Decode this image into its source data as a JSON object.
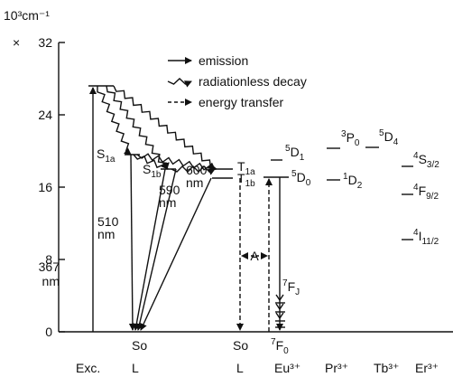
{
  "axis": {
    "unit": "10³cm⁻¹",
    "top_prefix": "×",
    "ylim": [
      0,
      32
    ],
    "yticks": [
      0,
      8,
      16,
      24,
      32
    ]
  },
  "legend": [
    {
      "label": "emission",
      "style": "solid"
    },
    {
      "label": "radiationless decay",
      "style": "wavy"
    },
    {
      "label": "energy transfer",
      "style": "dashed"
    }
  ],
  "columns": [
    "Exc.",
    "L",
    "L",
    "Eu³⁺",
    "Pr³⁺",
    "Tb³⁺",
    "Er³⁺"
  ],
  "excitation": {
    "energy": 27.2,
    "label": [
      "367",
      "nm"
    ]
  },
  "emission_labels": [
    [
      "510",
      "nm"
    ],
    [
      "590",
      "nm"
    ],
    [
      "600",
      "nm"
    ]
  ],
  "transfer_label": "A",
  "levels": [
    {
      "symbol": "S",
      "sub": "1a",
      "energy": 19.6
    },
    {
      "symbol": "S",
      "sub": "1b",
      "energy": 18.0
    },
    {
      "symbol": "T",
      "sub": "1a",
      "energy": 18.0
    },
    {
      "symbol": "T",
      "sub": "1b",
      "energy": 17.0
    },
    {
      "sup": "5",
      "symbol": "D",
      "sub": "1",
      "energy": 19.0
    },
    {
      "sup": "5",
      "symbol": "D",
      "sub": "0",
      "energy": 17.1
    },
    {
      "sup": "3",
      "symbol": "P",
      "sub": "0",
      "energy": 20.3
    },
    {
      "sup": "1",
      "symbol": "D",
      "sub": "2",
      "energy": 16.8
    },
    {
      "sup": "5",
      "symbol": "D",
      "sub": "4",
      "energy": 20.4
    },
    {
      "sup": "4",
      "symbol": "S",
      "sub": "3/2",
      "energy": 18.3
    },
    {
      "sup": "4",
      "symbol": "F",
      "sub": "9/2",
      "energy": 15.2
    },
    {
      "sup": "4",
      "symbol": "I",
      "sub": "11/2",
      "energy": 10.2
    }
  ],
  "ground": [
    {
      "symbol": "So"
    },
    {
      "symbol": "So"
    },
    {
      "sup": "7",
      "symbol": "F",
      "sub": "0"
    }
  ],
  "fj": {
    "sup": "7",
    "symbol": "F",
    "sub": "J"
  }
}
